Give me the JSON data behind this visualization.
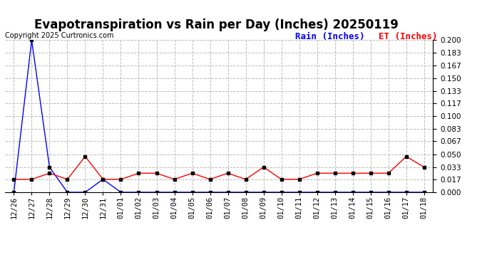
{
  "title": "Evapotranspiration vs Rain per Day (Inches) 20250119",
  "copyright_text": "Copyright 2025 Curtronics.com",
  "legend_rain": "Rain (Inches)",
  "legend_et": "ET (Inches)",
  "x_labels": [
    "12/26",
    "12/27",
    "12/28",
    "12/29",
    "12/30",
    "12/31",
    "01/01",
    "01/02",
    "01/03",
    "01/04",
    "01/05",
    "01/06",
    "01/07",
    "01/08",
    "01/09",
    "01/10",
    "01/11",
    "01/12",
    "01/13",
    "01/14",
    "01/15",
    "01/16",
    "01/17",
    "01/18"
  ],
  "rain_values": [
    0.0,
    0.2,
    0.033,
    0.0,
    0.0,
    0.017,
    0.0,
    0.0,
    0.0,
    0.0,
    0.0,
    0.0,
    0.0,
    0.0,
    0.0,
    0.0,
    0.0,
    0.0,
    0.0,
    0.0,
    0.0,
    0.0,
    0.0,
    0.0
  ],
  "et_values": [
    0.017,
    0.017,
    0.025,
    0.017,
    0.047,
    0.017,
    0.017,
    0.025,
    0.025,
    0.017,
    0.025,
    0.017,
    0.025,
    0.017,
    0.033,
    0.017,
    0.017,
    0.025,
    0.025,
    0.025,
    0.025,
    0.025,
    0.047,
    0.033
  ],
  "rain_color": "#0000ff",
  "et_color": "#ff0000",
  "ylim": [
    0.0,
    0.2
  ],
  "yticks": [
    0.0,
    0.017,
    0.033,
    0.05,
    0.067,
    0.083,
    0.1,
    0.117,
    0.133,
    0.15,
    0.167,
    0.183,
    0.2
  ],
  "background_color": "#ffffff",
  "grid_color": "#bbbbbb",
  "title_fontsize": 12,
  "copyright_fontsize": 7,
  "legend_fontsize": 9,
  "tick_fontsize": 7.5
}
